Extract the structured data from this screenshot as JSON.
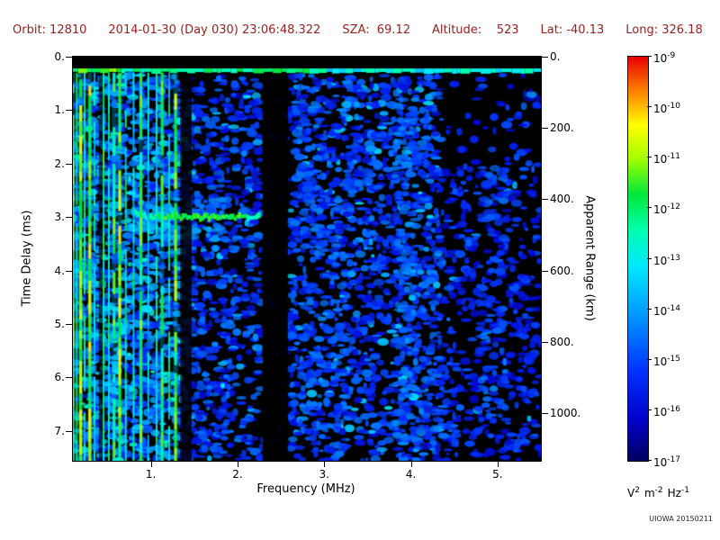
{
  "header": {
    "color": "#9b2020",
    "items": [
      {
        "text": "Orbit: 12810"
      },
      {
        "text": "2014-01-30 (Day 030) 23:06:48.322"
      },
      {
        "text": "SZA:  69.12"
      },
      {
        "text": "Altitude:    523"
      },
      {
        "text": "Lat: -40.13"
      },
      {
        "text": "Long: 326.18"
      }
    ]
  },
  "credit": "UIOWA 20150211",
  "chart_data": {
    "type": "heatmap",
    "title": "Radar sounder ionogram spectrogram",
    "xlabel": "Frequency (MHz)",
    "ylabel": "Time Delay (ms)",
    "y2label": "Apparent Range (km)",
    "x_range": [
      0.1,
      5.5
    ],
    "y_range": [
      0,
      7.56
    ],
    "x_ticks": [
      "1.",
      "2.",
      "3.",
      "4.",
      "5."
    ],
    "x_tick_values": [
      1,
      2,
      3,
      4,
      5
    ],
    "y_ticks": [
      "0.",
      "1.",
      "2.",
      "3.",
      "4.",
      "5.",
      "6.",
      "7."
    ],
    "y_tick_values": [
      0,
      1,
      2,
      3,
      4,
      5,
      6,
      7
    ],
    "y2_ticks": [
      "0.",
      "200.",
      "400.",
      "600.",
      "800.",
      "1000."
    ],
    "y2_tick_values_km": [
      0,
      200,
      400,
      600,
      800,
      1000
    ],
    "km_per_ms": 150,
    "colorbar": {
      "label_base": "10",
      "exponents": [
        "-9",
        "-10",
        "-11",
        "-12",
        "-13",
        "-14",
        "-15",
        "-16",
        "-17"
      ],
      "units_parts": [
        {
          "base": "V",
          "exp": "2"
        },
        {
          "base": "m",
          "exp": "-2"
        },
        {
          "base": "Hz",
          "exp": "-1"
        }
      ],
      "stops": [
        [
          0.0,
          "#000060"
        ],
        [
          0.1,
          "#0000c8"
        ],
        [
          0.22,
          "#0030ff"
        ],
        [
          0.35,
          "#0090ff"
        ],
        [
          0.48,
          "#00e8ff"
        ],
        [
          0.57,
          "#00ffb0"
        ],
        [
          0.66,
          "#00e838"
        ],
        [
          0.75,
          "#a8ff00"
        ],
        [
          0.83,
          "#ffff00"
        ],
        [
          0.91,
          "#ff8800"
        ],
        [
          1.0,
          "#e80000"
        ]
      ]
    },
    "features": {
      "surface_band": {
        "t": 0.22,
        "i_low": 0.68,
        "i_mid": 0.6,
        "i_high": 0.5
      },
      "echo": {
        "t": 3.0,
        "f0": 0.78,
        "f1": 2.25,
        "i_left": 0.5,
        "i_core": 0.66,
        "hook_f": 0.95,
        "hook_rate": 0.9
      },
      "dark_columns": [
        [
          0.4,
          0.445,
          0.6
        ],
        [
          1.34,
          1.47,
          0.82
        ],
        [
          2.29,
          2.58,
          0.93
        ]
      ],
      "stripes": [
        {
          "f": 0.1,
          "w": 3,
          "i": 0.66
        },
        {
          "f": 0.145,
          "w": 2,
          "i": 0.56
        },
        {
          "f": 0.19,
          "w": 3,
          "i": 0.7
        },
        {
          "f": 0.235,
          "w": 2,
          "i": 0.52
        },
        {
          "f": 0.295,
          "w": 3,
          "i": 0.72
        },
        {
          "f": 0.35,
          "w": 2,
          "i": 0.5
        },
        {
          "f": 0.455,
          "w": 2,
          "i": 0.6
        },
        {
          "f": 0.515,
          "w": 2,
          "i": 0.52
        },
        {
          "f": 0.575,
          "w": 3,
          "i": 0.62
        },
        {
          "f": 0.64,
          "w": 3,
          "i": 0.72
        },
        {
          "f": 0.71,
          "w": 2,
          "i": 0.55
        },
        {
          "f": 0.8,
          "w": 2,
          "i": 0.5
        },
        {
          "f": 0.885,
          "w": 3,
          "i": 0.62
        },
        {
          "f": 0.97,
          "w": 2,
          "i": 0.46
        },
        {
          "f": 1.065,
          "w": 2,
          "i": 0.5
        },
        {
          "f": 1.13,
          "w": 3,
          "i": 0.62
        },
        {
          "f": 1.21,
          "w": 2,
          "i": 0.52
        },
        {
          "f": 1.285,
          "w": 3,
          "i": 0.68
        }
      ],
      "clusters": [
        {
          "f": 1.0,
          "t": 3.05,
          "df": 0.55,
          "dt": 0.5,
          "n": 50,
          "i": 0.4
        },
        {
          "f": 1.6,
          "t": 2.8,
          "df": 0.6,
          "dt": 0.3,
          "n": 30,
          "i": 0.3
        },
        {
          "f": 1.4,
          "t": 3.3,
          "df": 0.8,
          "dt": 0.25,
          "n": 40,
          "i": 0.35
        },
        {
          "f": 3.95,
          "t": 4.0,
          "df": 0.25,
          "dt": 6.5,
          "n": 120,
          "i": 0.3
        },
        {
          "f": 3.0,
          "t": 5.0,
          "df": 0.5,
          "dt": 4.0,
          "n": 70,
          "i": 0.28
        },
        {
          "f": 4.95,
          "t": 4.5,
          "df": 0.3,
          "dt": 5.0,
          "n": 60,
          "i": 0.26
        },
        {
          "f": 2.8,
          "t": 2.0,
          "df": 0.3,
          "dt": 2.0,
          "n": 40,
          "i": 0.28
        },
        {
          "f": 0.5,
          "t": 5.5,
          "df": 0.4,
          "dt": 3.0,
          "n": 60,
          "i": 0.42
        },
        {
          "f": 4.3,
          "t": 6.5,
          "df": 0.5,
          "dt": 1.5,
          "n": 40,
          "i": 0.26
        }
      ],
      "noise": {
        "seed": 20150211,
        "blobs": 6500,
        "regions": [
          {
            "f0": 0.07,
            "f1": 1.35,
            "keep": 0.95,
            "imin": 0.16,
            "ivar": 0.26,
            "hi": 0.18
          },
          {
            "f0": 1.35,
            "f1": 2.28,
            "keep": 0.6,
            "imin": 0.12,
            "ivar": 0.2,
            "hi": 0.08
          },
          {
            "f0": 2.28,
            "f1": 2.6,
            "keep": 0.12,
            "imin": 0.1,
            "ivar": 0.14,
            "hi": 0.0
          },
          {
            "f0": 2.6,
            "f1": 4.35,
            "keep": 0.78,
            "imin": 0.13,
            "ivar": 0.2,
            "hi": 0.1
          },
          {
            "f0": 4.35,
            "f1": 5.55,
            "keep": 0.5,
            "imin": 0.11,
            "ivar": 0.16,
            "hi": 0.05,
            "topfade": 1.9
          }
        ]
      }
    }
  }
}
